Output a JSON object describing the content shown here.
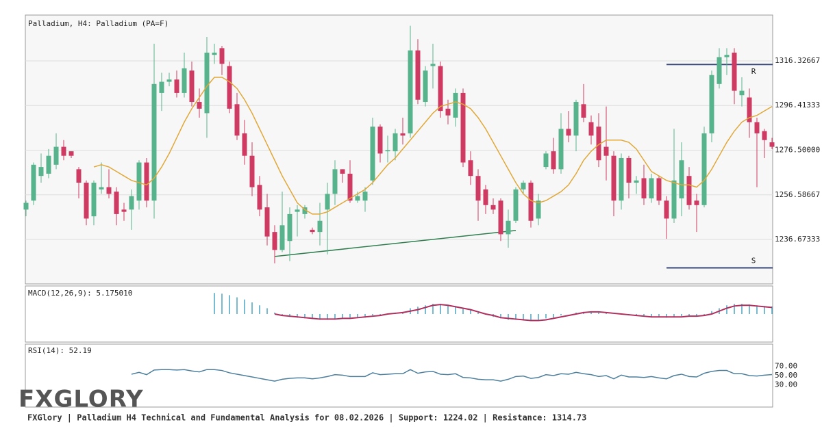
{
  "chart_data": [
    {
      "type": "candlestick",
      "title": "Palladium, H4: Palladium (PA=F)",
      "up_color": "#57b38c",
      "down_color": "#cf3a62",
      "open": [
        1250,
        1254,
        1265,
        1266,
        1270,
        1278,
        1276,
        1268,
        1262,
        1247,
        1259,
        1260,
        1258,
        1250,
        1250,
        1254,
        1271,
        1254,
        1302,
        1307,
        1308,
        1302,
        1312,
        1298,
        1293,
        1319,
        1322,
        1314,
        1297,
        1284,
        1274,
        1261,
        1251,
        1240,
        1232,
        1236,
        1249,
        1248,
        1241,
        1240,
        1250,
        1257,
        1268,
        1266,
        1254,
        1254,
        1263,
        1287,
        1276,
        1276,
        1284,
        1284,
        1321,
        1298,
        1314,
        1314,
        1295,
        1291,
        1302,
        1272,
        1265,
        1259,
        1252,
        1254,
        1239,
        1245,
        1259,
        1262,
        1246,
        1269,
        1276,
        1268,
        1286,
        1283,
        1297,
        1289,
        1287,
        1278,
        1274,
        1254,
        1273,
        1262,
        1264,
        1255,
        1264,
        1254,
        1246,
        1255,
        1265,
        1254,
        1252,
        1284,
        1306,
        1318,
        1320,
        1301,
        1300,
        1289,
        1285,
        1280
      ],
      "high": [
        1254,
        1271,
        1275,
        1277,
        1284,
        1281,
        1276,
        1269,
        1263,
        1263,
        1271,
        1268,
        1260,
        1253,
        1259,
        1272,
        1273,
        1324,
        1311,
        1311,
        1312,
        1320,
        1316,
        1304,
        1327,
        1324,
        1323,
        1316,
        1302,
        1290,
        1280,
        1265,
        1257,
        1243,
        1258,
        1251,
        1252,
        1252,
        1242,
        1253,
        1262,
        1272,
        1268,
        1272,
        1258,
        1260,
        1291,
        1288,
        1283,
        1286,
        1291,
        1332,
        1326,
        1314,
        1324,
        1316,
        1299,
        1304,
        1304,
        1276,
        1268,
        1261,
        1255,
        1255,
        1250,
        1260,
        1263,
        1263,
        1257,
        1276,
        1282,
        1293,
        1294,
        1299,
        1306,
        1292,
        1293,
        1296,
        1276,
        1275,
        1274,
        1265,
        1270,
        1266,
        1265,
        1256,
        1286,
        1280,
        1269,
        1257,
        1287,
        1312,
        1322,
        1322,
        1322,
        1309,
        1304,
        1291,
        1286,
        1282
      ],
      "low": [
        1247,
        1252,
        1262,
        1264,
        1268,
        1272,
        1273,
        1255,
        1243,
        1243,
        1257,
        1255,
        1243,
        1245,
        1241,
        1250,
        1251,
        1246,
        1294,
        1305,
        1300,
        1300,
        1296,
        1291,
        1282,
        1315,
        1310,
        1293,
        1281,
        1270,
        1256,
        1247,
        1234,
        1226,
        1231,
        1227,
        1238,
        1246,
        1239,
        1234,
        1230,
        1252,
        1262,
        1253,
        1253,
        1249,
        1261,
        1271,
        1271,
        1272,
        1279,
        1282,
        1297,
        1296,
        1304,
        1291,
        1288,
        1287,
        1269,
        1261,
        1245,
        1248,
        1248,
        1236,
        1233,
        1244,
        1257,
        1242,
        1243,
        1268,
        1266,
        1266,
        1280,
        1276,
        1289,
        1279,
        1269,
        1263,
        1247,
        1250,
        1255,
        1257,
        1252,
        1253,
        1252,
        1237,
        1244,
        1247,
        1250,
        1240,
        1251,
        1280,
        1304,
        1310,
        1297,
        1296,
        1282,
        1260,
        1273,
        1277
      ],
      "close": [
        1253,
        1270,
        1269,
        1274,
        1278,
        1274,
        1274,
        1262,
        1246,
        1262,
        1260,
        1257,
        1248,
        1249,
        1256,
        1271,
        1254,
        1306,
        1307,
        1308,
        1302,
        1313,
        1298,
        1295,
        1320,
        1320,
        1315,
        1295,
        1283,
        1274,
        1260,
        1250,
        1238,
        1232,
        1243,
        1248,
        1250,
        1251,
        1240,
        1245,
        1257,
        1268,
        1266,
        1254,
        1256,
        1258,
        1287,
        1275,
        1276.5,
        1284,
        1283,
        1321,
        1299,
        1312,
        1315,
        1294,
        1292,
        1302,
        1271,
        1265,
        1254,
        1252,
        1250,
        1239,
        1245,
        1259,
        1262,
        1245,
        1254,
        1275,
        1268,
        1286,
        1283,
        1298,
        1291,
        1283,
        1272,
        1274,
        1254,
        1273,
        1262,
        1263,
        1255,
        1264,
        1254,
        1246,
        1263,
        1272,
        1252,
        1252,
        1284,
        1310,
        1318,
        1319,
        1303,
        1303,
        1289,
        1284,
        1281,
        1278
      ],
      "overlays": [
        {
          "color": "#e0a838",
          "values": [
            null,
            null,
            null,
            null,
            null,
            null,
            null,
            null,
            null,
            1269,
            1270,
            1269,
            1267,
            1265,
            1263,
            1262,
            1261,
            1264,
            1269,
            1275,
            1282,
            1289,
            1295,
            1300,
            1305,
            1309,
            1309,
            1307,
            1304,
            1299,
            1293,
            1286,
            1279,
            1272,
            1265,
            1259,
            1253,
            1250,
            1248,
            1248,
            1249,
            1251,
            1253,
            1255,
            1257,
            1259,
            1262,
            1266,
            1270,
            1273,
            1277,
            1281,
            1285,
            1289,
            1293,
            1296,
            1297,
            1298,
            1297,
            1295,
            1291,
            1286,
            1280,
            1274,
            1268,
            1262,
            1257,
            1254,
            1253,
            1254,
            1256,
            1258,
            1261,
            1266,
            1272,
            1276,
            1279,
            1281,
            1281,
            1281,
            1280,
            1277,
            1272,
            1267,
            1265,
            1263,
            1262,
            1261,
            1261,
            1260,
            1263,
            1268,
            1274,
            1280,
            1285,
            1289,
            1291,
            1292,
            1294,
            1296
          ]
        }
      ],
      "trendline": {
        "start": 33,
        "end": 65,
        "values": [
          1229.1,
          1240.7
        ],
        "color": "#2e7d4f"
      },
      "levels": [
        {
          "label": "R",
          "value": 1314.73,
          "start": 85,
          "color": "#3a4a7a"
        },
        {
          "label": "S",
          "value": 1224.02,
          "start": 85,
          "color": "#3a4a7a"
        }
      ],
      "ylim": [
        1216.85,
        1336.76
      ],
      "yticks": [
        1236.67333,
        1256.58667,
        {
          "value": 1276.5,
          "label": "1276.50000"
        },
        1296.41333,
        1316.32667
      ],
      "grid": true
    },
    {
      "type": "macd",
      "title": "MACD(12,26,9): 5.175010",
      "ylim": [
        -19.3,
        19.3
      ],
      "series": [
        {
          "type": "bar",
          "color": "#4aa3c0",
          "values": [
            null,
            null,
            null,
            null,
            null,
            null,
            null,
            null,
            null,
            null,
            null,
            null,
            null,
            null,
            null,
            null,
            null,
            null,
            null,
            null,
            null,
            null,
            null,
            null,
            null,
            14.5,
            14,
            13,
            11.5,
            10,
            8,
            6,
            4,
            1,
            -1,
            -2,
            -2.5,
            -3,
            -3.5,
            -4,
            -4,
            -3.5,
            -3,
            -2.5,
            -2.5,
            -2.5,
            -1,
            -0.5,
            0,
            1,
            1.5,
            4,
            5,
            6,
            7,
            7,
            6,
            5.5,
            4,
            3,
            1,
            -0.5,
            -2,
            -3,
            -4,
            -4,
            -4,
            -4,
            -4,
            -3,
            -2.5,
            -1,
            0,
            1,
            1.5,
            1.5,
            1,
            1,
            0,
            -0.5,
            -1,
            -1,
            -1.5,
            -2,
            -2,
            -2.5,
            -2,
            -1.5,
            -1.5,
            -1.5,
            -0.5,
            2,
            4,
            6,
            7,
            7,
            6.5,
            6,
            5.5,
            5.17501
          ]
        },
        {
          "type": "line",
          "color": "#b02e5c",
          "values": [
            null,
            null,
            null,
            null,
            null,
            null,
            null,
            null,
            null,
            null,
            null,
            null,
            null,
            null,
            null,
            null,
            null,
            null,
            null,
            null,
            null,
            null,
            null,
            null,
            null,
            null,
            null,
            null,
            null,
            null,
            null,
            null,
            null,
            0,
            -1,
            -1.5,
            -2,
            -2.5,
            -3,
            -3.5,
            -3.5,
            -3.5,
            -3,
            -3,
            -2.5,
            -2,
            -1.5,
            -1,
            0,
            0.5,
            1,
            2,
            3,
            4.5,
            6,
            6.5,
            6,
            5,
            4,
            3,
            1.5,
            0,
            -1,
            -2.5,
            -3,
            -3.5,
            -4,
            -4.5,
            -4.5,
            -4,
            -3,
            -2,
            -1,
            0,
            1,
            1.5,
            1.5,
            1,
            0.5,
            0,
            -0.5,
            -1,
            -1.5,
            -2,
            -2,
            -2,
            -2,
            -2,
            -1.5,
            -1.5,
            -1,
            0,
            2,
            4,
            5.5,
            6,
            6,
            5.5,
            5,
            4.5
          ]
        }
      ]
    },
    {
      "type": "rsi",
      "title": "RSI(14): 52.19",
      "color": "#4d7f9c",
      "values": [
        null,
        null,
        null,
        null,
        null,
        null,
        null,
        null,
        null,
        null,
        null,
        null,
        null,
        null,
        53,
        57,
        52,
        62,
        63,
        63,
        62,
        63,
        60,
        58,
        63,
        63,
        61,
        56,
        53,
        50,
        47,
        44,
        41,
        38,
        42,
        44,
        45,
        45,
        43,
        45,
        48,
        52,
        51,
        48,
        48,
        48,
        56,
        52,
        53,
        54,
        54,
        63,
        55,
        58,
        59,
        53,
        52,
        54,
        46,
        45,
        42,
        41,
        41,
        38,
        42,
        48,
        49,
        44,
        46,
        52,
        50,
        54,
        53,
        57,
        54,
        52,
        48,
        50,
        43,
        51,
        47,
        47,
        46,
        48,
        45,
        43,
        50,
        53,
        48,
        47,
        55,
        59,
        61,
        61,
        54,
        54,
        50,
        49,
        51,
        52.19
      ],
      "ylim": [
        -18,
        118
      ],
      "yticks": [
        {
          "value": 30,
          "label": "30.00"
        },
        {
          "value": 50,
          "label": "50.00"
        },
        {
          "value": 70,
          "label": "70.00"
        }
      ]
    }
  ],
  "footer": {
    "logo": "FXGLORY",
    "text": "FXGlory | Palladium H4 Technical and Fundamental Analysis for 08.02.2026 | Support: 1224.02 | Resistance: 1314.73"
  }
}
